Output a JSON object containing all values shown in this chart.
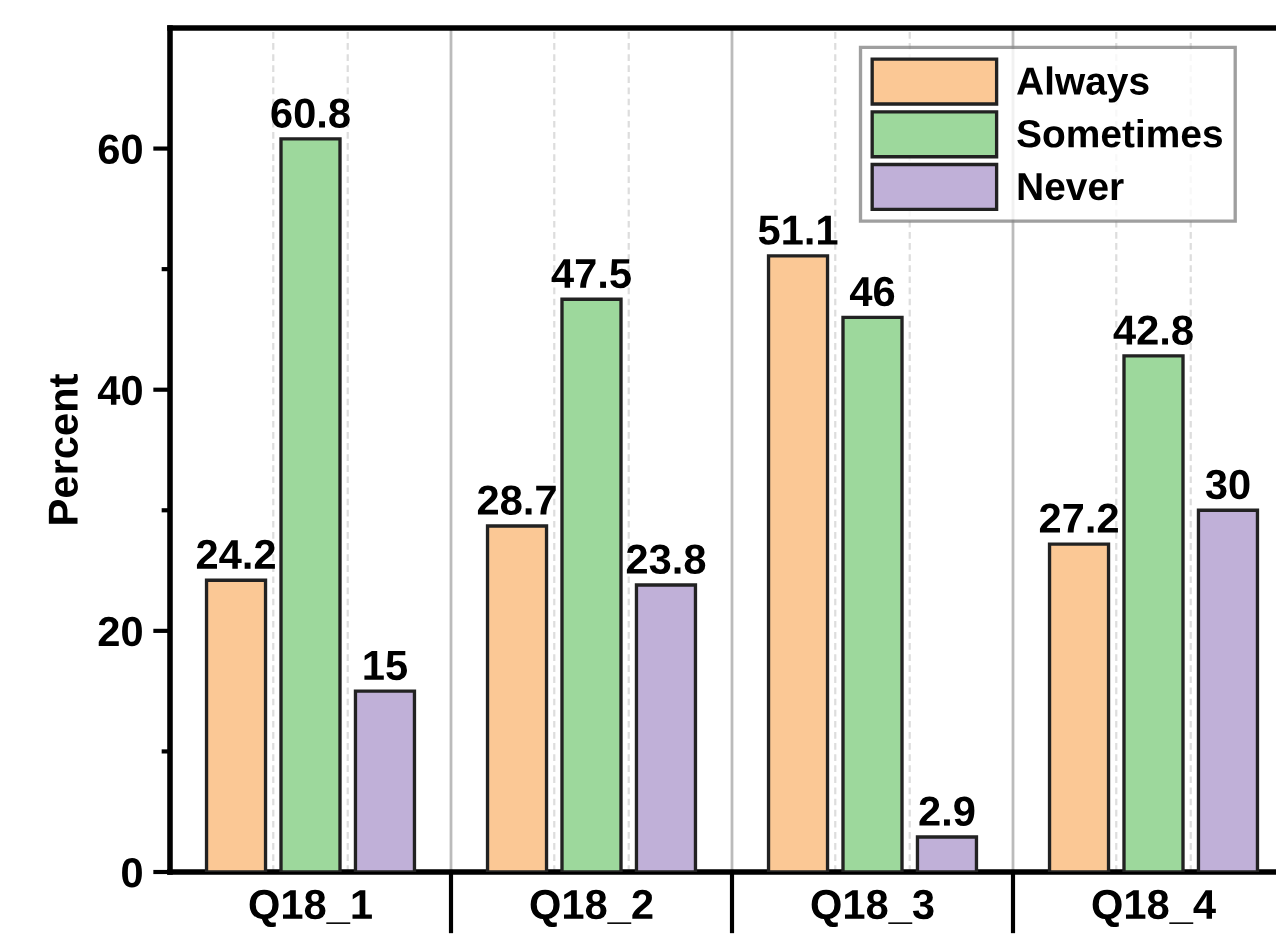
{
  "chart_data": {
    "type": "bar",
    "ylabel": "Percent",
    "categories": [
      "Q18_1",
      "Q18_2",
      "Q18_3",
      "Q18_4"
    ],
    "series": [
      {
        "name": "Always",
        "color": "#fbc895",
        "values": [
          24.2,
          28.7,
          51.1,
          27.2
        ]
      },
      {
        "name": "Sometimes",
        "color": "#9dd89c",
        "values": [
          60.8,
          47.5,
          46,
          42.8
        ]
      },
      {
        "name": "Never",
        "color": "#c0b0d8",
        "values": [
          15,
          23.8,
          2.9,
          30
        ]
      }
    ],
    "ylim": [
      0,
      70
    ],
    "yticks": [
      0,
      20,
      40,
      60
    ],
    "grid": "x",
    "legend": "top right",
    "data_labels": true
  }
}
